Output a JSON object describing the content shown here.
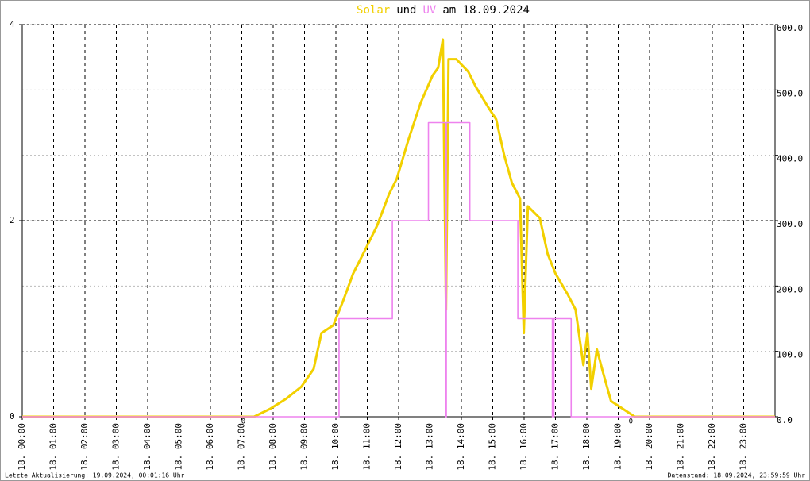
{
  "chart_data": {
    "type": "line",
    "title_parts": [
      {
        "text": "Solar",
        "color": "#f2d000"
      },
      {
        "text": "und",
        "color": "#000000"
      },
      {
        "text": "UV",
        "color": "#ee82ee"
      },
      {
        "text": "am 18.09.2024",
        "color": "#000000"
      }
    ],
    "xlim": [
      0,
      24
    ],
    "xticks": [
      {
        "value": 0,
        "label": "18. 00:00"
      },
      {
        "value": 1,
        "label": "18. 01:00"
      },
      {
        "value": 2,
        "label": "18. 02:00"
      },
      {
        "value": 3,
        "label": "18. 03:00"
      },
      {
        "value": 4,
        "label": "18. 04:00"
      },
      {
        "value": 5,
        "label": "18. 05:00"
      },
      {
        "value": 6,
        "label": "18. 06:00"
      },
      {
        "value": 7,
        "label": "18. 07:00"
      },
      {
        "value": 8,
        "label": "18. 08:00"
      },
      {
        "value": 9,
        "label": "18. 09:00"
      },
      {
        "value": 10,
        "label": "18. 10:00"
      },
      {
        "value": 11,
        "label": "18. 11:00"
      },
      {
        "value": 12,
        "label": "18. 12:00"
      },
      {
        "value": 13,
        "label": "18. 13:00"
      },
      {
        "value": 14,
        "label": "18. 14:00"
      },
      {
        "value": 15,
        "label": "18. 15:00"
      },
      {
        "value": 16,
        "label": "18. 16:00"
      },
      {
        "value": 17,
        "label": "18. 17:00"
      },
      {
        "value": 18,
        "label": "18. 18:00"
      },
      {
        "value": 19,
        "label": "18. 19:00"
      },
      {
        "value": 20,
        "label": "18. 20:00"
      },
      {
        "value": 21,
        "label": "18. 21:00"
      },
      {
        "value": 22,
        "label": "18. 22:00"
      },
      {
        "value": 23,
        "label": "18. 23:00"
      }
    ],
    "ylim": [
      0,
      4
    ],
    "yticks": [
      0,
      2,
      4
    ],
    "y2lim": [
      0,
      600
    ],
    "y2ticks": [
      {
        "value": 0,
        "label": "0.0"
      },
      {
        "value": 100,
        "label": "100.0"
      },
      {
        "value": 200,
        "label": "200.0"
      },
      {
        "value": 300,
        "label": "300.0"
      },
      {
        "value": 400,
        "label": "400.0"
      },
      {
        "value": 500,
        "label": "500.0"
      },
      {
        "value": 600,
        "label": "600.0"
      }
    ],
    "grid": true,
    "series": [
      {
        "name": "Solar",
        "color": "#f2d000",
        "axis": "y2",
        "x": [
          0,
          7.39,
          7.9,
          8.4,
          8.9,
          9.29,
          9.54,
          9.92,
          10.22,
          10.55,
          10.93,
          11.31,
          11.69,
          11.94,
          12.32,
          12.7,
          13.08,
          13.26,
          13.41,
          13.51,
          13.59,
          13.84,
          14.22,
          14.47,
          14.85,
          15.11,
          15.36,
          15.61,
          15.87,
          15.99,
          16.12,
          16.5,
          16.75,
          17.0,
          17.38,
          17.64,
          17.89,
          18.02,
          18.14,
          18.32,
          18.52,
          18.77,
          19.15,
          19.53,
          24
        ],
        "values": [
          0,
          0,
          12,
          27,
          46,
          73,
          128,
          140,
          176,
          219,
          255,
          292,
          340,
          364,
          425,
          480,
          522,
          534,
          577,
          164,
          547,
          547,
          528,
          504,
          474,
          455,
          401,
          358,
          334,
          128,
          322,
          304,
          249,
          219,
          188,
          164,
          79,
          128,
          43,
          103,
          67,
          24,
          12,
          0,
          0
        ]
      },
      {
        "name": "UV",
        "color": "#ee82ee",
        "axis": "y",
        "x": [
          0,
          10.1,
          10.1,
          11.8,
          11.8,
          12.95,
          12.95,
          13.5,
          13.5,
          13.52,
          13.52,
          14.27,
          14.27,
          15.8,
          15.8,
          16.9,
          16.9,
          16.95,
          16.95,
          17.5,
          17.5,
          24
        ],
        "values": [
          0,
          0,
          1,
          1,
          2,
          2,
          3,
          3,
          0,
          0,
          3,
          3,
          2,
          2,
          1,
          1,
          0,
          0,
          1,
          1,
          0,
          0
        ]
      }
    ],
    "zero_markers": [
      {
        "x": 7.05,
        "label": "0"
      },
      {
        "x": 19.4,
        "label": "0"
      }
    ],
    "footer_left": "Letzte Aktualisierung: 19.09.2024, 00:01:16 Uhr",
    "footer_right": "Datenstand: 18.09.2024, 23:59:59 Uhr"
  }
}
